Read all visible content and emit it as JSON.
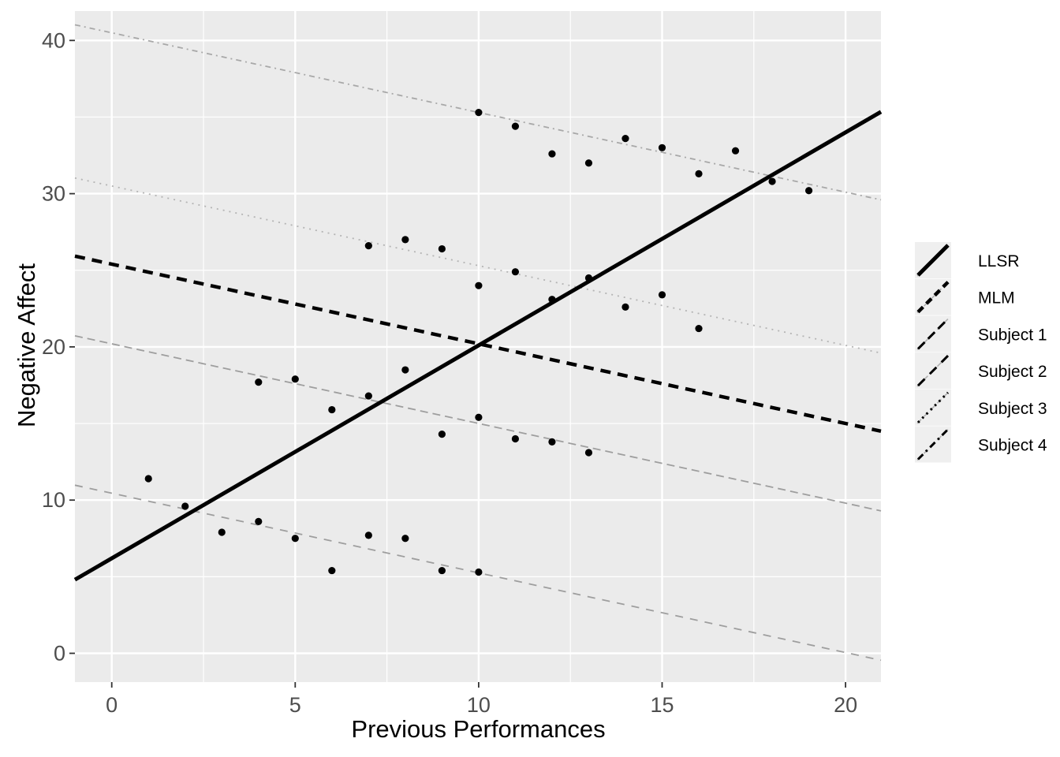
{
  "chart_data": {
    "type": "scatter",
    "title": "",
    "xlabel": "Previous Performances",
    "ylabel": "Negative Affect",
    "xlim": [
      -1,
      21
    ],
    "ylim": [
      -1.9,
      41.9
    ],
    "x_ticks": [
      0,
      5,
      10,
      15,
      20
    ],
    "y_ticks": [
      0,
      10,
      20,
      30,
      40
    ],
    "x_minor_ticks": [
      2.5,
      7.5,
      12.5,
      17.5
    ],
    "y_minor_ticks": [
      5,
      15,
      25,
      35
    ],
    "grid": true,
    "legend_position": "right",
    "series": [
      {
        "name": "Subject 1",
        "points": [
          [
            4,
            17.7
          ],
          [
            5,
            17.9
          ],
          [
            6,
            15.9
          ],
          [
            7,
            16.8
          ],
          [
            8,
            18.5
          ],
          [
            9,
            14.3
          ],
          [
            10,
            15.4
          ],
          [
            11,
            14.0
          ],
          [
            12,
            13.8
          ],
          [
            13,
            13.1
          ]
        ]
      },
      {
        "name": "Subject 2",
        "points": [
          [
            1,
            11.4
          ],
          [
            2,
            9.6
          ],
          [
            3,
            7.9
          ],
          [
            4,
            8.6
          ],
          [
            5,
            7.5
          ],
          [
            6,
            5.4
          ],
          [
            7,
            7.7
          ],
          [
            8,
            7.5
          ],
          [
            9,
            5.4
          ],
          [
            10,
            5.3
          ]
        ]
      },
      {
        "name": "Subject 3",
        "points": [
          [
            7,
            26.6
          ],
          [
            8,
            27.0
          ],
          [
            9,
            26.4
          ],
          [
            10,
            24.0
          ],
          [
            11,
            24.9
          ],
          [
            12,
            23.1
          ],
          [
            13,
            24.5
          ],
          [
            14,
            22.6
          ],
          [
            15,
            23.4
          ],
          [
            16,
            21.2
          ]
        ]
      },
      {
        "name": "Subject 4",
        "points": [
          [
            10,
            35.3
          ],
          [
            11,
            34.4
          ],
          [
            12,
            32.6
          ],
          [
            13,
            32.0
          ],
          [
            14,
            33.6
          ],
          [
            15,
            33.0
          ],
          [
            16,
            31.3
          ],
          [
            17,
            32.8
          ],
          [
            18,
            30.8
          ],
          [
            19,
            30.2
          ]
        ]
      }
    ],
    "lines": [
      {
        "name": "LLSR",
        "intercept": 6.2,
        "slope": 1.39,
        "color": "#000000",
        "width": 5,
        "dash": ""
      },
      {
        "name": "MLM",
        "intercept": 25.4,
        "slope": -0.52,
        "color": "#000000",
        "width": 4.5,
        "dash": "13 9"
      },
      {
        "name": "Subject 1",
        "intercept": 20.2,
        "slope": -0.52,
        "color": "#9e9e9e",
        "width": 1.8,
        "dash": "10 6"
      },
      {
        "name": "Subject 2",
        "intercept": 10.45,
        "slope": -0.52,
        "color": "#9e9e9e",
        "width": 1.8,
        "dash": "10 9"
      },
      {
        "name": "Subject 3",
        "intercept": 30.5,
        "slope": -0.52,
        "color": "#b4b4b4",
        "width": 1.8,
        "dash": "2 6"
      },
      {
        "name": "Subject 4",
        "intercept": 40.5,
        "slope": -0.52,
        "color": "#a8a8a8",
        "width": 1.8,
        "dash": "7 5 2 5"
      }
    ],
    "legend": {
      "items": [
        {
          "label": "LLSR",
          "key_dash": "",
          "key_width": 5
        },
        {
          "label": "MLM",
          "key_dash": "9 6",
          "key_width": 4.5
        },
        {
          "label": "Subject 1",
          "key_dash": "12 6",
          "key_width": 3
        },
        {
          "label": "Subject 2",
          "key_dash": "12 9",
          "key_width": 3
        },
        {
          "label": "Subject 3",
          "key_dash": "2.5 5",
          "key_width": 3
        },
        {
          "label": "Subject 4",
          "key_dash": "9 5 2.5 5",
          "key_width": 3
        }
      ]
    },
    "colors": {
      "panel_bg": "#EBEBEB",
      "grid": "#FFFFFF",
      "tick": "#333333",
      "tick_label": "#4D4D4D",
      "axis_title": "#000000",
      "point": "#000000",
      "legend_key_bg": "#EFEFEF",
      "legend_key_underlay": "#B0B0B0",
      "legend_text": "#000000"
    }
  }
}
